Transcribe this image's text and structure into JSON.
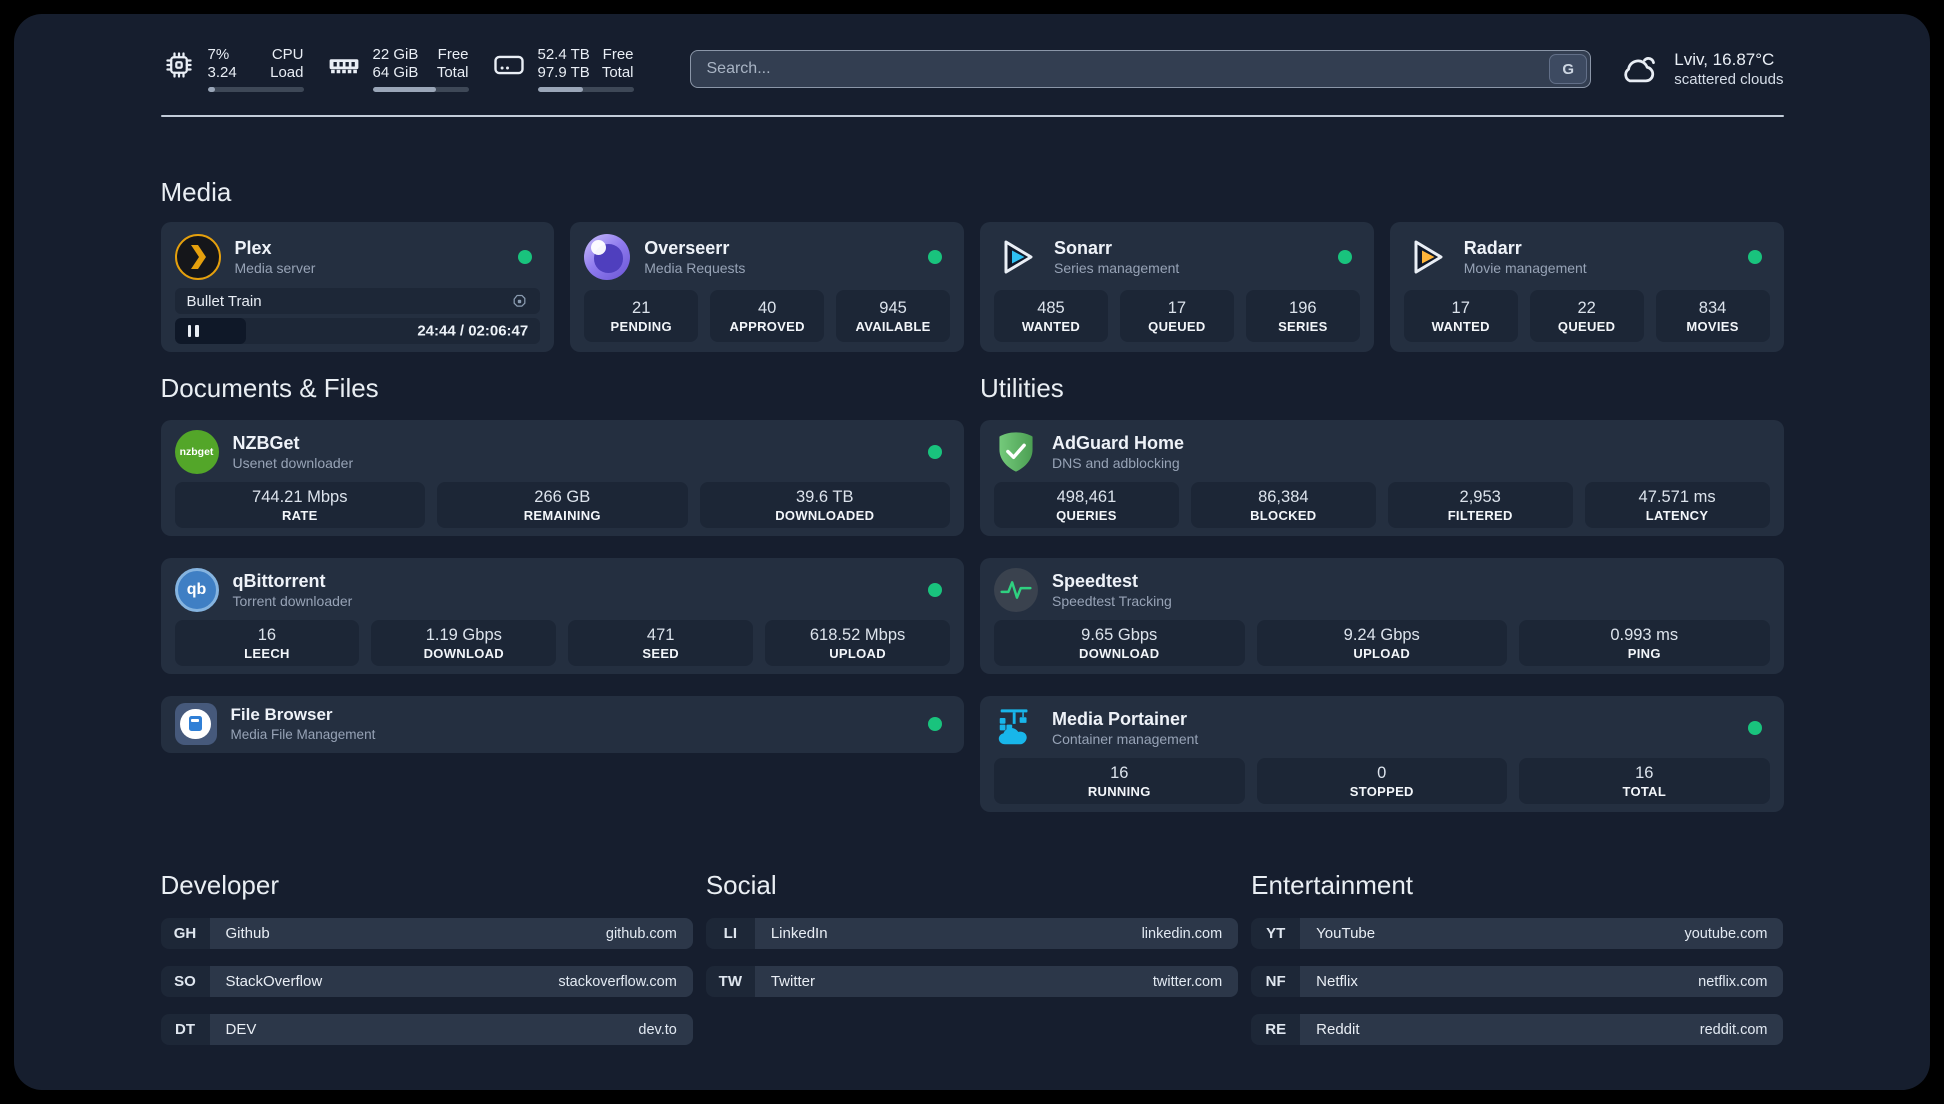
{
  "topbar": {
    "cpu": {
      "value_top": "7%",
      "value_bottom": "3.24",
      "label_top": "CPU",
      "label_bottom": "Load",
      "progress_pct": 8
    },
    "memory": {
      "value_top": "22 GiB",
      "value_bottom": "64 GiB",
      "label_top": "Free",
      "label_bottom": "Total",
      "progress_pct": 66
    },
    "disk": {
      "value_top": "52.4 TB",
      "value_bottom": "97.9 TB",
      "label_top": "Free",
      "label_bottom": "Total",
      "progress_pct": 47
    },
    "search": {
      "placeholder": "Search...",
      "button_label": "G"
    },
    "weather": {
      "location_temp": "Lviv, 16.87°C",
      "condition": "scattered clouds"
    }
  },
  "media": {
    "title": "Media",
    "plex": {
      "name": "Plex",
      "subtitle": "Media server",
      "status": "online",
      "now_playing": "Bullet Train",
      "time_display": "24:44 / 02:06:47",
      "elapsed": "24:44",
      "duration": "02:06:47",
      "progress_pct": 19.5
    },
    "apps": [
      {
        "name": "Overseerr",
        "subtitle": "Media Requests",
        "status": "online",
        "stats": [
          {
            "value": "21",
            "label": "PENDING"
          },
          {
            "value": "40",
            "label": "APPROVED"
          },
          {
            "value": "945",
            "label": "AVAILABLE"
          }
        ]
      },
      {
        "name": "Sonarr",
        "subtitle": "Series management",
        "status": "online",
        "stats": [
          {
            "value": "485",
            "label": "WANTED"
          },
          {
            "value": "17",
            "label": "QUEUED"
          },
          {
            "value": "196",
            "label": "SERIES"
          }
        ]
      },
      {
        "name": "Radarr",
        "subtitle": "Movie management",
        "status": "online",
        "stats": [
          {
            "value": "17",
            "label": "WANTED"
          },
          {
            "value": "22",
            "label": "QUEUED"
          },
          {
            "value": "834",
            "label": "MOVIES"
          }
        ]
      }
    ]
  },
  "documents": {
    "title": "Documents & Files",
    "apps": [
      {
        "name": "NZBGet",
        "subtitle": "Usenet downloader",
        "status": "online",
        "stats": [
          {
            "value": "744.21 Mbps",
            "label": "RATE"
          },
          {
            "value": "266 GB",
            "label": "REMAINING"
          },
          {
            "value": "39.6 TB",
            "label": "DOWNLOADED"
          }
        ]
      },
      {
        "name": "qBittorrent",
        "subtitle": "Torrent downloader",
        "status": "online",
        "stats": [
          {
            "value": "16",
            "label": "LEECH"
          },
          {
            "value": "1.19 Gbps",
            "label": "DOWNLOAD"
          },
          {
            "value": "471",
            "label": "SEED"
          },
          {
            "value": "618.52 Mbps",
            "label": "UPLOAD"
          }
        ]
      },
      {
        "name": "File Browser",
        "subtitle": "Media File Management",
        "status": "online",
        "stats": []
      }
    ]
  },
  "utilities": {
    "title": "Utilities",
    "apps": [
      {
        "name": "AdGuard Home",
        "subtitle": "DNS and adblocking",
        "stats": [
          {
            "value": "498,461",
            "label": "QUERIES"
          },
          {
            "value": "86,384",
            "label": "BLOCKED"
          },
          {
            "value": "2,953",
            "label": "FILTERED"
          },
          {
            "value": "47.571 ms",
            "label": "LATENCY"
          }
        ]
      },
      {
        "name": "Speedtest",
        "subtitle": "Speedtest Tracking",
        "stats": [
          {
            "value": "9.65 Gbps",
            "label": "DOWNLOAD"
          },
          {
            "value": "9.24 Gbps",
            "label": "UPLOAD"
          },
          {
            "value": "0.993 ms",
            "label": "PING"
          }
        ]
      },
      {
        "name": "Media Portainer",
        "subtitle": "Container management",
        "status": "online",
        "stats": [
          {
            "value": "16",
            "label": "RUNNING"
          },
          {
            "value": "0",
            "label": "STOPPED"
          },
          {
            "value": "16",
            "label": "TOTAL"
          }
        ]
      }
    ]
  },
  "developer": {
    "title": "Developer",
    "bookmarks": [
      {
        "abbr": "GH",
        "name": "Github",
        "url": "github.com"
      },
      {
        "abbr": "SO",
        "name": "StackOverflow",
        "url": "stackoverflow.com"
      },
      {
        "abbr": "DT",
        "name": "DEV",
        "url": "dev.to"
      }
    ]
  },
  "social": {
    "title": "Social",
    "bookmarks": [
      {
        "abbr": "LI",
        "name": "LinkedIn",
        "url": "linkedin.com"
      },
      {
        "abbr": "TW",
        "name": "Twitter",
        "url": "twitter.com"
      }
    ]
  },
  "entertainment": {
    "title": "Entertainment",
    "bookmarks": [
      {
        "abbr": "YT",
        "name": "YouTube",
        "url": "youtube.com"
      },
      {
        "abbr": "NF",
        "name": "Netflix",
        "url": "netflix.com"
      },
      {
        "abbr": "RE",
        "name": "Reddit",
        "url": "reddit.com"
      }
    ]
  },
  "colors": {
    "status_online": "#19c37d",
    "plex": "#e5a00d",
    "sonarr": "#2fc0f2",
    "radarr": "#ffb53a",
    "adguard": "#5cb85f",
    "portainer": "#18b6ea",
    "qbittorrent": "#3f7fc4",
    "nzbget": "#53a629",
    "speedtest": "#2fd180",
    "overseerr": "#8f7bee",
    "filebrowser": "#2f7fd6"
  }
}
